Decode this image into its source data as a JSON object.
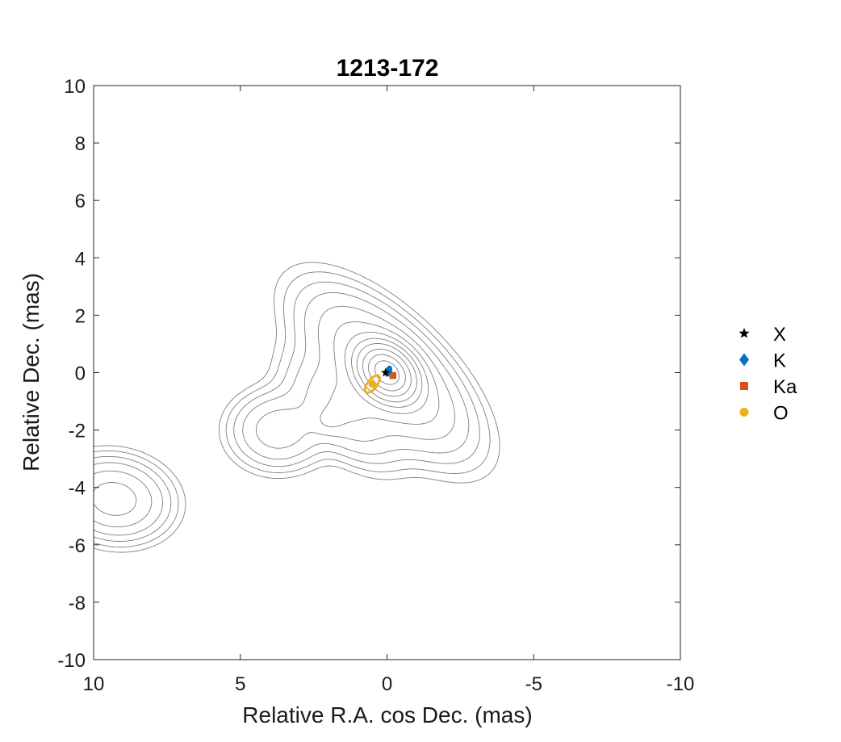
{
  "chart_data": {
    "type": "scatter",
    "title": "1213-172",
    "xlabel": "Relative R.A. cos Dec. (mas)",
    "ylabel": "Relative Dec. (mas)",
    "xlim": [
      10,
      -10
    ],
    "ylim": [
      -10,
      10
    ],
    "x_reversed": true,
    "grid": false,
    "legend_position": "outside-right",
    "xticks": [
      10,
      5,
      0,
      -5,
      -10
    ],
    "xtick_labels": [
      "10",
      "5",
      "0",
      "-5",
      "-10"
    ],
    "yticks": [
      10,
      8,
      6,
      4,
      2,
      0,
      -2,
      -4,
      -6,
      -8,
      -10
    ],
    "ytick_labels": [
      "10",
      "8",
      "6",
      "4",
      "2",
      "0",
      "-2",
      "-4",
      "-6",
      "-8",
      "-10"
    ],
    "series": [
      {
        "name": "X",
        "marker": "star",
        "color": "#000000",
        "x": [
          0.05
        ],
        "y": [
          0.0
        ],
        "ellipse": null
      },
      {
        "name": "K",
        "marker": "diamond",
        "color": "#0072bd",
        "x": [
          -0.05
        ],
        "y": [
          0.05
        ],
        "ellipse": {
          "rx": 0.07,
          "ry": 0.16,
          "angle_deg": 20
        }
      },
      {
        "name": "Ka",
        "marker": "square",
        "color": "#d95319",
        "x": [
          -0.2
        ],
        "y": [
          -0.1
        ],
        "ellipse": null
      },
      {
        "name": "O",
        "marker": "circle",
        "color": "#edb120",
        "x": [
          0.5
        ],
        "y": [
          -0.4
        ],
        "ellipse": {
          "rx": 0.16,
          "ry": 0.36,
          "angle_deg": 38
        }
      }
    ],
    "contours": {
      "color": "#7f7f7f",
      "components": [
        {
          "x": 0.0,
          "y": 0.0,
          "flux": 1.0,
          "sigma_major": 0.6,
          "sigma_minor": 0.45,
          "angle_deg": 45
        },
        {
          "x": 0.0,
          "y": 0.0,
          "flux": 0.12,
          "sigma_major": 1.9,
          "sigma_minor": 0.85,
          "angle_deg": 45
        },
        {
          "x": 1.5,
          "y": -1.3,
          "flux": 0.055,
          "sigma_major": 1.3,
          "sigma_minor": 0.7,
          "angle_deg": 45
        },
        {
          "x": 3.7,
          "y": -2.0,
          "flux": 0.05,
          "sigma_major": 0.9,
          "sigma_minor": 0.75,
          "angle_deg": 0
        },
        {
          "x": 2.0,
          "y": -1.7,
          "flux": 0.025,
          "sigma_major": 0.35,
          "sigma_minor": 0.3,
          "angle_deg": 0
        },
        {
          "x": 9.3,
          "y": -4.4,
          "flux": 0.08,
          "sigma_major": 1.0,
          "sigma_minor": 0.75,
          "angle_deg": 10
        }
      ],
      "levels": [
        0.004,
        0.007,
        0.012,
        0.02,
        0.035,
        0.06,
        0.1,
        0.16,
        0.25,
        0.4,
        0.6,
        0.85
      ]
    }
  }
}
